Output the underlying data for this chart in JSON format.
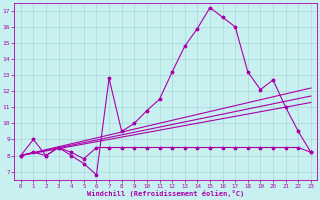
{
  "xlabel": "Windchill (Refroidissement éolien,°C)",
  "bg_color": "#c8f0f0",
  "line_color": "#aa00aa",
  "xlim": [
    -0.5,
    23.5
  ],
  "ylim": [
    6.5,
    17.5
  ],
  "xticks": [
    0,
    1,
    2,
    3,
    4,
    5,
    6,
    7,
    8,
    9,
    10,
    11,
    12,
    13,
    14,
    15,
    16,
    17,
    18,
    19,
    20,
    21,
    22,
    23
  ],
  "yticks": [
    7,
    8,
    9,
    10,
    11,
    12,
    13,
    14,
    15,
    16,
    17
  ],
  "series1_x": [
    0,
    1,
    2,
    3,
    4,
    5,
    6,
    7,
    8,
    9,
    10,
    11,
    12,
    13,
    14,
    15,
    16,
    17,
    18,
    19,
    20,
    21,
    22,
    23
  ],
  "series1_y": [
    8.0,
    9.0,
    8.0,
    8.5,
    8.0,
    7.5,
    6.8,
    12.8,
    9.5,
    10.0,
    10.8,
    11.5,
    13.2,
    14.8,
    15.9,
    17.2,
    16.6,
    16.0,
    13.2,
    12.1,
    12.7,
    11.0,
    9.5,
    8.2
  ],
  "series2_x": [
    0,
    1,
    2,
    3,
    4,
    5,
    6,
    7,
    8,
    9,
    10,
    11,
    12,
    13,
    14,
    15,
    16,
    17,
    18,
    19,
    20,
    21,
    22,
    23
  ],
  "series2_y": [
    8.0,
    8.2,
    8.0,
    8.5,
    8.2,
    7.8,
    8.5,
    8.5,
    8.5,
    8.5,
    8.5,
    8.5,
    8.5,
    8.5,
    8.5,
    8.5,
    8.5,
    8.5,
    8.5,
    8.5,
    8.5,
    8.5,
    8.5,
    8.2
  ],
  "series3_x": [
    0,
    23
  ],
  "series3_y": [
    8.0,
    12.2
  ],
  "series4_x": [
    0,
    23
  ],
  "series4_y": [
    8.0,
    11.7
  ],
  "series5_x": [
    0,
    23
  ],
  "series5_y": [
    8.0,
    11.3
  ]
}
